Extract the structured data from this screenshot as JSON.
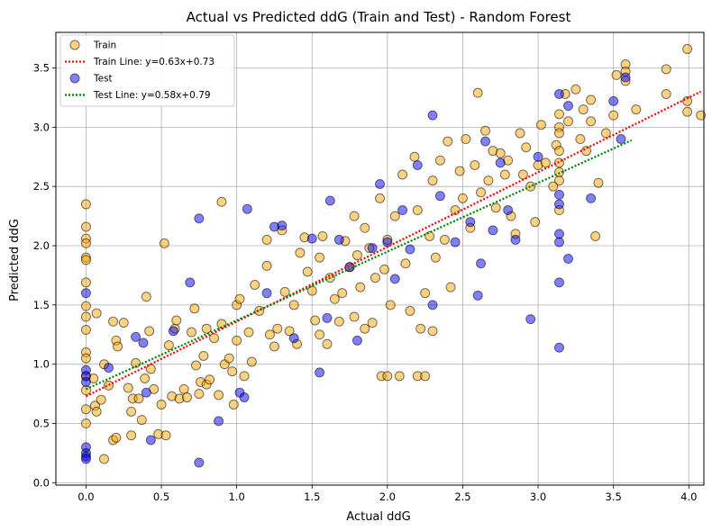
{
  "chart_data": {
    "type": "scatter",
    "title": "Actual vs Predicted ddG (Train and Test) - Random Forest",
    "xlabel": "Actual ddG",
    "ylabel": "Predicted ddG",
    "xlim": [
      -0.2,
      4.1
    ],
    "ylim": [
      -0.02,
      3.8
    ],
    "xticks": [
      0.0,
      0.5,
      1.0,
      1.5,
      2.0,
      2.5,
      3.0,
      3.5,
      4.0
    ],
    "yticks": [
      0.0,
      0.5,
      1.0,
      1.5,
      2.0,
      2.5,
      3.0,
      3.5
    ],
    "xtick_labels": [
      "0.0",
      "0.5",
      "1.0",
      "1.5",
      "2.0",
      "2.5",
      "3.0",
      "3.5",
      "4.0"
    ],
    "ytick_labels": [
      "0.0",
      "0.5",
      "1.0",
      "1.5",
      "2.0",
      "2.5",
      "3.0",
      "3.5"
    ],
    "grid": true,
    "legend_position": "top-left",
    "colors": {
      "train": "#FFA500",
      "test": "#0000FF",
      "train_line": "#FF0000",
      "test_line": "#008000"
    },
    "series": [
      {
        "name": "Train",
        "kind": "scatter",
        "points": [
          [
            0.0,
            2.35
          ],
          [
            0.0,
            2.16
          ],
          [
            0.0,
            2.06
          ],
          [
            0.0,
            2.02
          ],
          [
            0.0,
            1.9
          ],
          [
            0.0,
            1.88
          ],
          [
            0.0,
            1.69
          ],
          [
            0.0,
            1.49
          ],
          [
            0.0,
            1.4
          ],
          [
            0.0,
            1.29
          ],
          [
            0.0,
            1.1
          ],
          [
            0.0,
            1.05
          ],
          [
            0.0,
            0.9
          ],
          [
            0.0,
            0.78
          ],
          [
            0.0,
            0.62
          ],
          [
            0.0,
            0.5
          ],
          [
            0.05,
            0.88
          ],
          [
            0.06,
            0.65
          ],
          [
            0.07,
            0.6
          ],
          [
            0.07,
            1.43
          ],
          [
            0.1,
            0.7
          ],
          [
            0.12,
            1.0
          ],
          [
            0.12,
            0.2
          ],
          [
            0.15,
            0.82
          ],
          [
            0.18,
            1.36
          ],
          [
            0.18,
            0.36
          ],
          [
            0.2,
            0.38
          ],
          [
            0.2,
            1.2
          ],
          [
            0.21,
            1.15
          ],
          [
            0.25,
            1.35
          ],
          [
            0.28,
            0.8
          ],
          [
            0.3,
            0.6
          ],
          [
            0.3,
            0.4
          ],
          [
            0.31,
            0.71
          ],
          [
            0.33,
            1.01
          ],
          [
            0.35,
            0.71
          ],
          [
            0.37,
            0.53
          ],
          [
            0.39,
            0.88
          ],
          [
            0.4,
            1.57
          ],
          [
            0.42,
            1.28
          ],
          [
            0.43,
            0.96
          ],
          [
            0.45,
            0.79
          ],
          [
            0.48,
            0.41
          ],
          [
            0.5,
            0.66
          ],
          [
            0.52,
            2.02
          ],
          [
            0.53,
            0.4
          ],
          [
            0.55,
            1.16
          ],
          [
            0.57,
            0.73
          ],
          [
            0.59,
            1.3
          ],
          [
            0.6,
            1.37
          ],
          [
            0.62,
            0.71
          ],
          [
            0.65,
            0.79
          ],
          [
            0.67,
            0.72
          ],
          [
            0.7,
            1.27
          ],
          [
            0.72,
            1.47
          ],
          [
            0.73,
            0.99
          ],
          [
            0.75,
            0.75
          ],
          [
            0.76,
            0.85
          ],
          [
            0.78,
            1.07
          ],
          [
            0.8,
            0.83
          ],
          [
            0.8,
            1.3
          ],
          [
            0.82,
            0.87
          ],
          [
            0.85,
            1.22
          ],
          [
            0.88,
            0.74
          ],
          [
            0.9,
            1.34
          ],
          [
            0.9,
            2.37
          ],
          [
            0.92,
            1.0
          ],
          [
            0.95,
            1.05
          ],
          [
            0.97,
            0.94
          ],
          [
            0.98,
            0.66
          ],
          [
            1.0,
            1.5
          ],
          [
            1.0,
            1.2
          ],
          [
            1.02,
            1.55
          ],
          [
            1.05,
            0.9
          ],
          [
            1.08,
            1.27
          ],
          [
            1.1,
            1.02
          ],
          [
            1.12,
            1.67
          ],
          [
            1.15,
            1.45
          ],
          [
            1.2,
            1.83
          ],
          [
            1.2,
            2.05
          ],
          [
            1.22,
            1.25
          ],
          [
            1.25,
            1.15
          ],
          [
            1.27,
            1.3
          ],
          [
            1.3,
            2.13
          ],
          [
            1.32,
            1.61
          ],
          [
            1.35,
            1.28
          ],
          [
            1.38,
            1.5
          ],
          [
            1.4,
            1.17
          ],
          [
            1.42,
            1.94
          ],
          [
            1.45,
            2.07
          ],
          [
            1.47,
            1.78
          ],
          [
            1.5,
            1.62
          ],
          [
            1.52,
            1.37
          ],
          [
            1.55,
            1.25
          ],
          [
            1.55,
            1.9
          ],
          [
            1.57,
            2.08
          ],
          [
            1.6,
            1.17
          ],
          [
            1.62,
            1.73
          ],
          [
            1.65,
            1.55
          ],
          [
            1.68,
            1.36
          ],
          [
            1.7,
            1.6
          ],
          [
            1.72,
            2.04
          ],
          [
            1.75,
            1.82
          ],
          [
            1.78,
            1.4
          ],
          [
            1.78,
            2.25
          ],
          [
            1.8,
            1.92
          ],
          [
            1.82,
            1.65
          ],
          [
            1.85,
            1.3
          ],
          [
            1.85,
            2.15
          ],
          [
            1.88,
            1.98
          ],
          [
            1.9,
            1.35
          ],
          [
            1.92,
            1.73
          ],
          [
            1.95,
            2.4
          ],
          [
            1.96,
            0.9
          ],
          [
            1.98,
            1.8
          ],
          [
            2.0,
            0.9
          ],
          [
            2.0,
            2.05
          ],
          [
            2.02,
            1.5
          ],
          [
            2.05,
            2.25
          ],
          [
            2.08,
            0.9
          ],
          [
            2.1,
            2.6
          ],
          [
            2.12,
            1.85
          ],
          [
            2.15,
            1.45
          ],
          [
            2.18,
            2.75
          ],
          [
            2.2,
            0.9
          ],
          [
            2.2,
            2.3
          ],
          [
            2.22,
            1.3
          ],
          [
            2.25,
            1.6
          ],
          [
            2.25,
            0.9
          ],
          [
            2.28,
            2.08
          ],
          [
            2.3,
            2.55
          ],
          [
            2.3,
            1.28
          ],
          [
            2.32,
            1.9
          ],
          [
            2.35,
            2.72
          ],
          [
            2.38,
            2.05
          ],
          [
            2.4,
            2.88
          ],
          [
            2.42,
            1.65
          ],
          [
            2.45,
            2.3
          ],
          [
            2.48,
            2.63
          ],
          [
            2.5,
            2.4
          ],
          [
            2.52,
            2.9
          ],
          [
            2.55,
            2.15
          ],
          [
            2.58,
            2.68
          ],
          [
            2.6,
            3.29
          ],
          [
            2.62,
            2.45
          ],
          [
            2.65,
            2.97
          ],
          [
            2.67,
            2.55
          ],
          [
            2.7,
            2.8
          ],
          [
            2.72,
            2.32
          ],
          [
            2.75,
            2.78
          ],
          [
            2.78,
            2.6
          ],
          [
            2.8,
            2.72
          ],
          [
            2.82,
            2.25
          ],
          [
            2.85,
            2.1
          ],
          [
            2.88,
            2.95
          ],
          [
            2.9,
            2.6
          ],
          [
            2.92,
            2.83
          ],
          [
            2.95,
            2.5
          ],
          [
            2.98,
            2.2
          ],
          [
            3.0,
            2.68
          ],
          [
            3.02,
            3.02
          ],
          [
            3.05,
            2.7
          ],
          [
            3.1,
            2.5
          ],
          [
            3.12,
            2.85
          ],
          [
            3.14,
            3.11
          ],
          [
            3.14,
            3.0
          ],
          [
            3.14,
            2.95
          ],
          [
            3.14,
            2.8
          ],
          [
            3.14,
            2.7
          ],
          [
            3.14,
            2.62
          ],
          [
            3.14,
            2.55
          ],
          [
            3.14,
            2.3
          ],
          [
            3.18,
            3.28
          ],
          [
            3.2,
            3.05
          ],
          [
            3.25,
            3.32
          ],
          [
            3.28,
            2.9
          ],
          [
            3.3,
            3.15
          ],
          [
            3.32,
            2.8
          ],
          [
            3.35,
            3.23
          ],
          [
            3.35,
            3.05
          ],
          [
            3.38,
            2.08
          ],
          [
            3.4,
            2.53
          ],
          [
            3.45,
            2.95
          ],
          [
            3.5,
            3.1
          ],
          [
            3.52,
            3.44
          ],
          [
            3.58,
            3.53
          ],
          [
            3.58,
            3.47
          ],
          [
            3.58,
            3.39
          ],
          [
            3.65,
            3.15
          ],
          [
            3.85,
            3.49
          ],
          [
            3.85,
            3.28
          ],
          [
            3.99,
            3.66
          ],
          [
            3.99,
            3.22
          ],
          [
            3.99,
            3.13
          ],
          [
            4.08,
            3.1
          ]
        ]
      },
      {
        "name": "Train Line: y=0.63x+0.73",
        "kind": "line",
        "slope": 0.63,
        "intercept": 0.73,
        "x_range": [
          0.0,
          4.08
        ]
      },
      {
        "name": "Test",
        "kind": "scatter",
        "points": [
          [
            0.0,
            1.6
          ],
          [
            0.0,
            0.95
          ],
          [
            0.0,
            0.9
          ],
          [
            0.0,
            0.85
          ],
          [
            0.0,
            0.3
          ],
          [
            0.0,
            0.25
          ],
          [
            0.0,
            0.22
          ],
          [
            0.0,
            0.2
          ],
          [
            0.15,
            0.97
          ],
          [
            0.33,
            1.23
          ],
          [
            0.38,
            1.18
          ],
          [
            0.4,
            0.76
          ],
          [
            0.43,
            0.36
          ],
          [
            0.58,
            1.28
          ],
          [
            0.69,
            1.69
          ],
          [
            0.75,
            0.17
          ],
          [
            0.75,
            2.23
          ],
          [
            0.88,
            0.52
          ],
          [
            1.02,
            0.76
          ],
          [
            1.07,
            2.31
          ],
          [
            1.05,
            0.72
          ],
          [
            1.2,
            1.6
          ],
          [
            1.25,
            2.16
          ],
          [
            1.3,
            2.17
          ],
          [
            1.38,
            1.22
          ],
          [
            1.5,
            2.06
          ],
          [
            1.55,
            0.93
          ],
          [
            1.6,
            1.39
          ],
          [
            1.62,
            2.38
          ],
          [
            1.68,
            2.05
          ],
          [
            1.75,
            1.82
          ],
          [
            1.8,
            1.2
          ],
          [
            1.9,
            1.98
          ],
          [
            1.95,
            2.52
          ],
          [
            2.0,
            2.03
          ],
          [
            2.05,
            1.72
          ],
          [
            2.1,
            2.3
          ],
          [
            2.15,
            1.97
          ],
          [
            2.2,
            2.68
          ],
          [
            2.3,
            1.5
          ],
          [
            2.3,
            3.1
          ],
          [
            2.35,
            2.42
          ],
          [
            2.45,
            2.03
          ],
          [
            2.55,
            2.2
          ],
          [
            2.6,
            1.58
          ],
          [
            2.62,
            1.85
          ],
          [
            2.65,
            2.88
          ],
          [
            2.7,
            2.13
          ],
          [
            2.75,
            2.7
          ],
          [
            2.8,
            2.3
          ],
          [
            2.85,
            2.05
          ],
          [
            2.95,
            1.38
          ],
          [
            3.0,
            2.75
          ],
          [
            3.14,
            3.28
          ],
          [
            3.14,
            2.43
          ],
          [
            3.14,
            2.35
          ],
          [
            3.14,
            2.1
          ],
          [
            3.14,
            2.03
          ],
          [
            3.14,
            1.69
          ],
          [
            3.14,
            1.14
          ],
          [
            3.2,
            3.18
          ],
          [
            3.2,
            1.89
          ],
          [
            3.35,
            2.4
          ],
          [
            3.5,
            3.22
          ],
          [
            3.55,
            2.9
          ],
          [
            3.58,
            3.42
          ]
        ]
      },
      {
        "name": "Test Line: y=0.58x+0.79",
        "kind": "line",
        "slope": 0.58,
        "intercept": 0.79,
        "x_range": [
          0.0,
          3.62
        ]
      }
    ]
  }
}
